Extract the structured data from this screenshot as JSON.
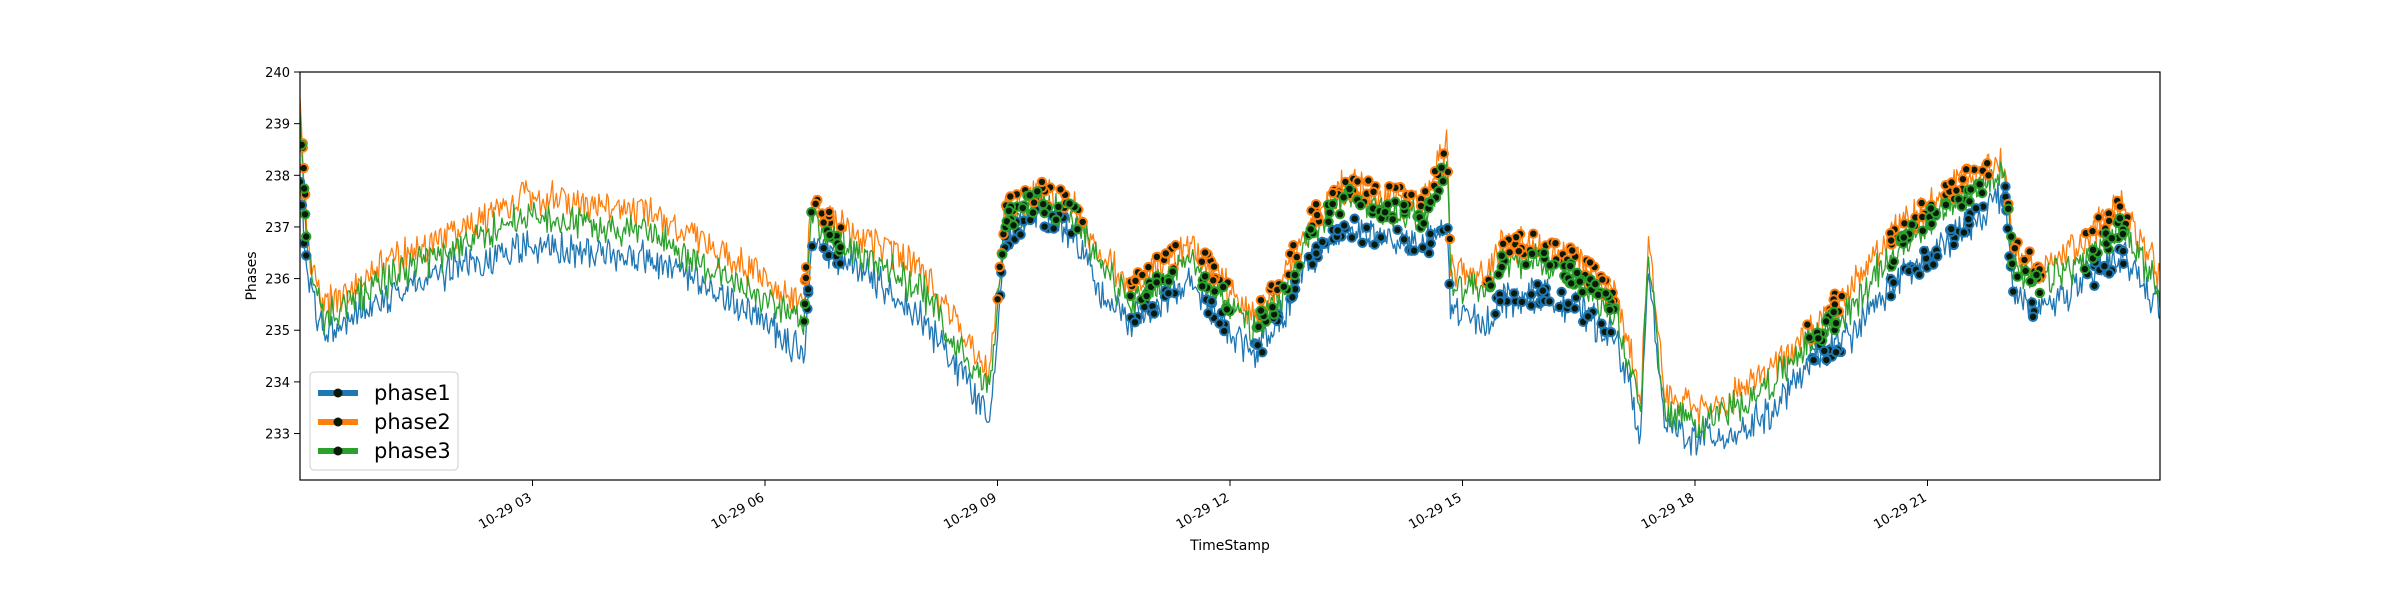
{
  "chart_data": {
    "type": "line",
    "title": "",
    "xlabel": "TimeStamp",
    "ylabel": "Phases",
    "xlim_hours": [
      0,
      24
    ],
    "ylim": [
      232.1,
      240.0
    ],
    "yticks": [
      233,
      234,
      235,
      236,
      237,
      238,
      239,
      240
    ],
    "xticks": [
      {
        "hour": 3,
        "label": "10-29 03"
      },
      {
        "hour": 6,
        "label": "10-29 06"
      },
      {
        "hour": 9,
        "label": "10-29 09"
      },
      {
        "hour": 12,
        "label": "10-29 12"
      },
      {
        "hour": 15,
        "label": "10-29 15"
      },
      {
        "hour": 18,
        "label": "10-29 18"
      },
      {
        "hour": 21,
        "label": "10-29 21"
      }
    ],
    "legend_position": "bottom-left",
    "anchor_hours": [
      0,
      0.1,
      0.3,
      1.0,
      2.0,
      2.9,
      4.5,
      6.0,
      6.5,
      6.6,
      7.0,
      8.0,
      8.9,
      9.1,
      9.5,
      10.0,
      10.3,
      10.7,
      11.0,
      11.5,
      12.0,
      12.3,
      12.7,
      13.0,
      13.5,
      14.0,
      14.5,
      14.8,
      14.85,
      15.3,
      15.5,
      16.0,
      16.5,
      17.0,
      17.3,
      17.4,
      17.6,
      18.0,
      18.5,
      19.0,
      19.5,
      20.0,
      20.5,
      21.0,
      21.5,
      22.0,
      22.1,
      22.4,
      23.0,
      23.5,
      24.0
    ],
    "series": [
      {
        "name": "phase1",
        "color": "#1f77b4",
        "values": [
          237.8,
          236.0,
          234.9,
          235.6,
          236.2,
          236.6,
          236.4,
          235.2,
          234.5,
          236.6,
          236.4,
          235.3,
          233.4,
          236.8,
          237.3,
          236.9,
          235.8,
          235.2,
          235.4,
          235.9,
          235.0,
          234.5,
          235.3,
          236.3,
          237.0,
          236.8,
          236.6,
          237.0,
          235.4,
          235.1,
          235.6,
          235.7,
          235.4,
          234.8,
          233.0,
          236.2,
          233.2,
          232.9,
          233.0,
          233.4,
          234.4,
          234.9,
          235.8,
          236.4,
          237.0,
          237.7,
          235.7,
          235.4,
          235.9,
          236.5,
          235.4
        ]
      },
      {
        "name": "phase2",
        "color": "#ff7f0e",
        "values": [
          239.6,
          236.6,
          235.4,
          236.2,
          236.9,
          237.6,
          237.3,
          236.0,
          235.5,
          237.5,
          237.0,
          236.2,
          234.2,
          237.3,
          237.7,
          237.4,
          236.5,
          235.8,
          236.2,
          236.6,
          235.8,
          235.2,
          236.0,
          237.1,
          237.8,
          237.6,
          237.5,
          238.6,
          236.2,
          236.0,
          236.6,
          236.7,
          236.3,
          235.6,
          233.8,
          236.8,
          233.8,
          233.4,
          233.7,
          234.2,
          235.0,
          235.8,
          236.8,
          237.4,
          237.9,
          238.3,
          236.6,
          236.2,
          236.7,
          237.4,
          236.1
        ]
      },
      {
        "name": "phase3",
        "color": "#2ca02c",
        "values": [
          239.3,
          236.4,
          235.2,
          235.9,
          236.6,
          237.2,
          236.9,
          235.6,
          235.1,
          237.2,
          236.7,
          235.8,
          233.8,
          237.1,
          237.5,
          237.2,
          236.3,
          235.5,
          235.8,
          236.3,
          235.5,
          235.0,
          235.7,
          236.8,
          237.6,
          237.3,
          237.2,
          238.2,
          235.9,
          235.7,
          236.3,
          236.4,
          236.0,
          235.3,
          233.4,
          236.5,
          233.5,
          233.2,
          233.5,
          234.0,
          234.8,
          235.4,
          236.4,
          237.1,
          237.6,
          238.2,
          236.2,
          235.9,
          236.3,
          237.0,
          235.8
        ]
      }
    ]
  }
}
